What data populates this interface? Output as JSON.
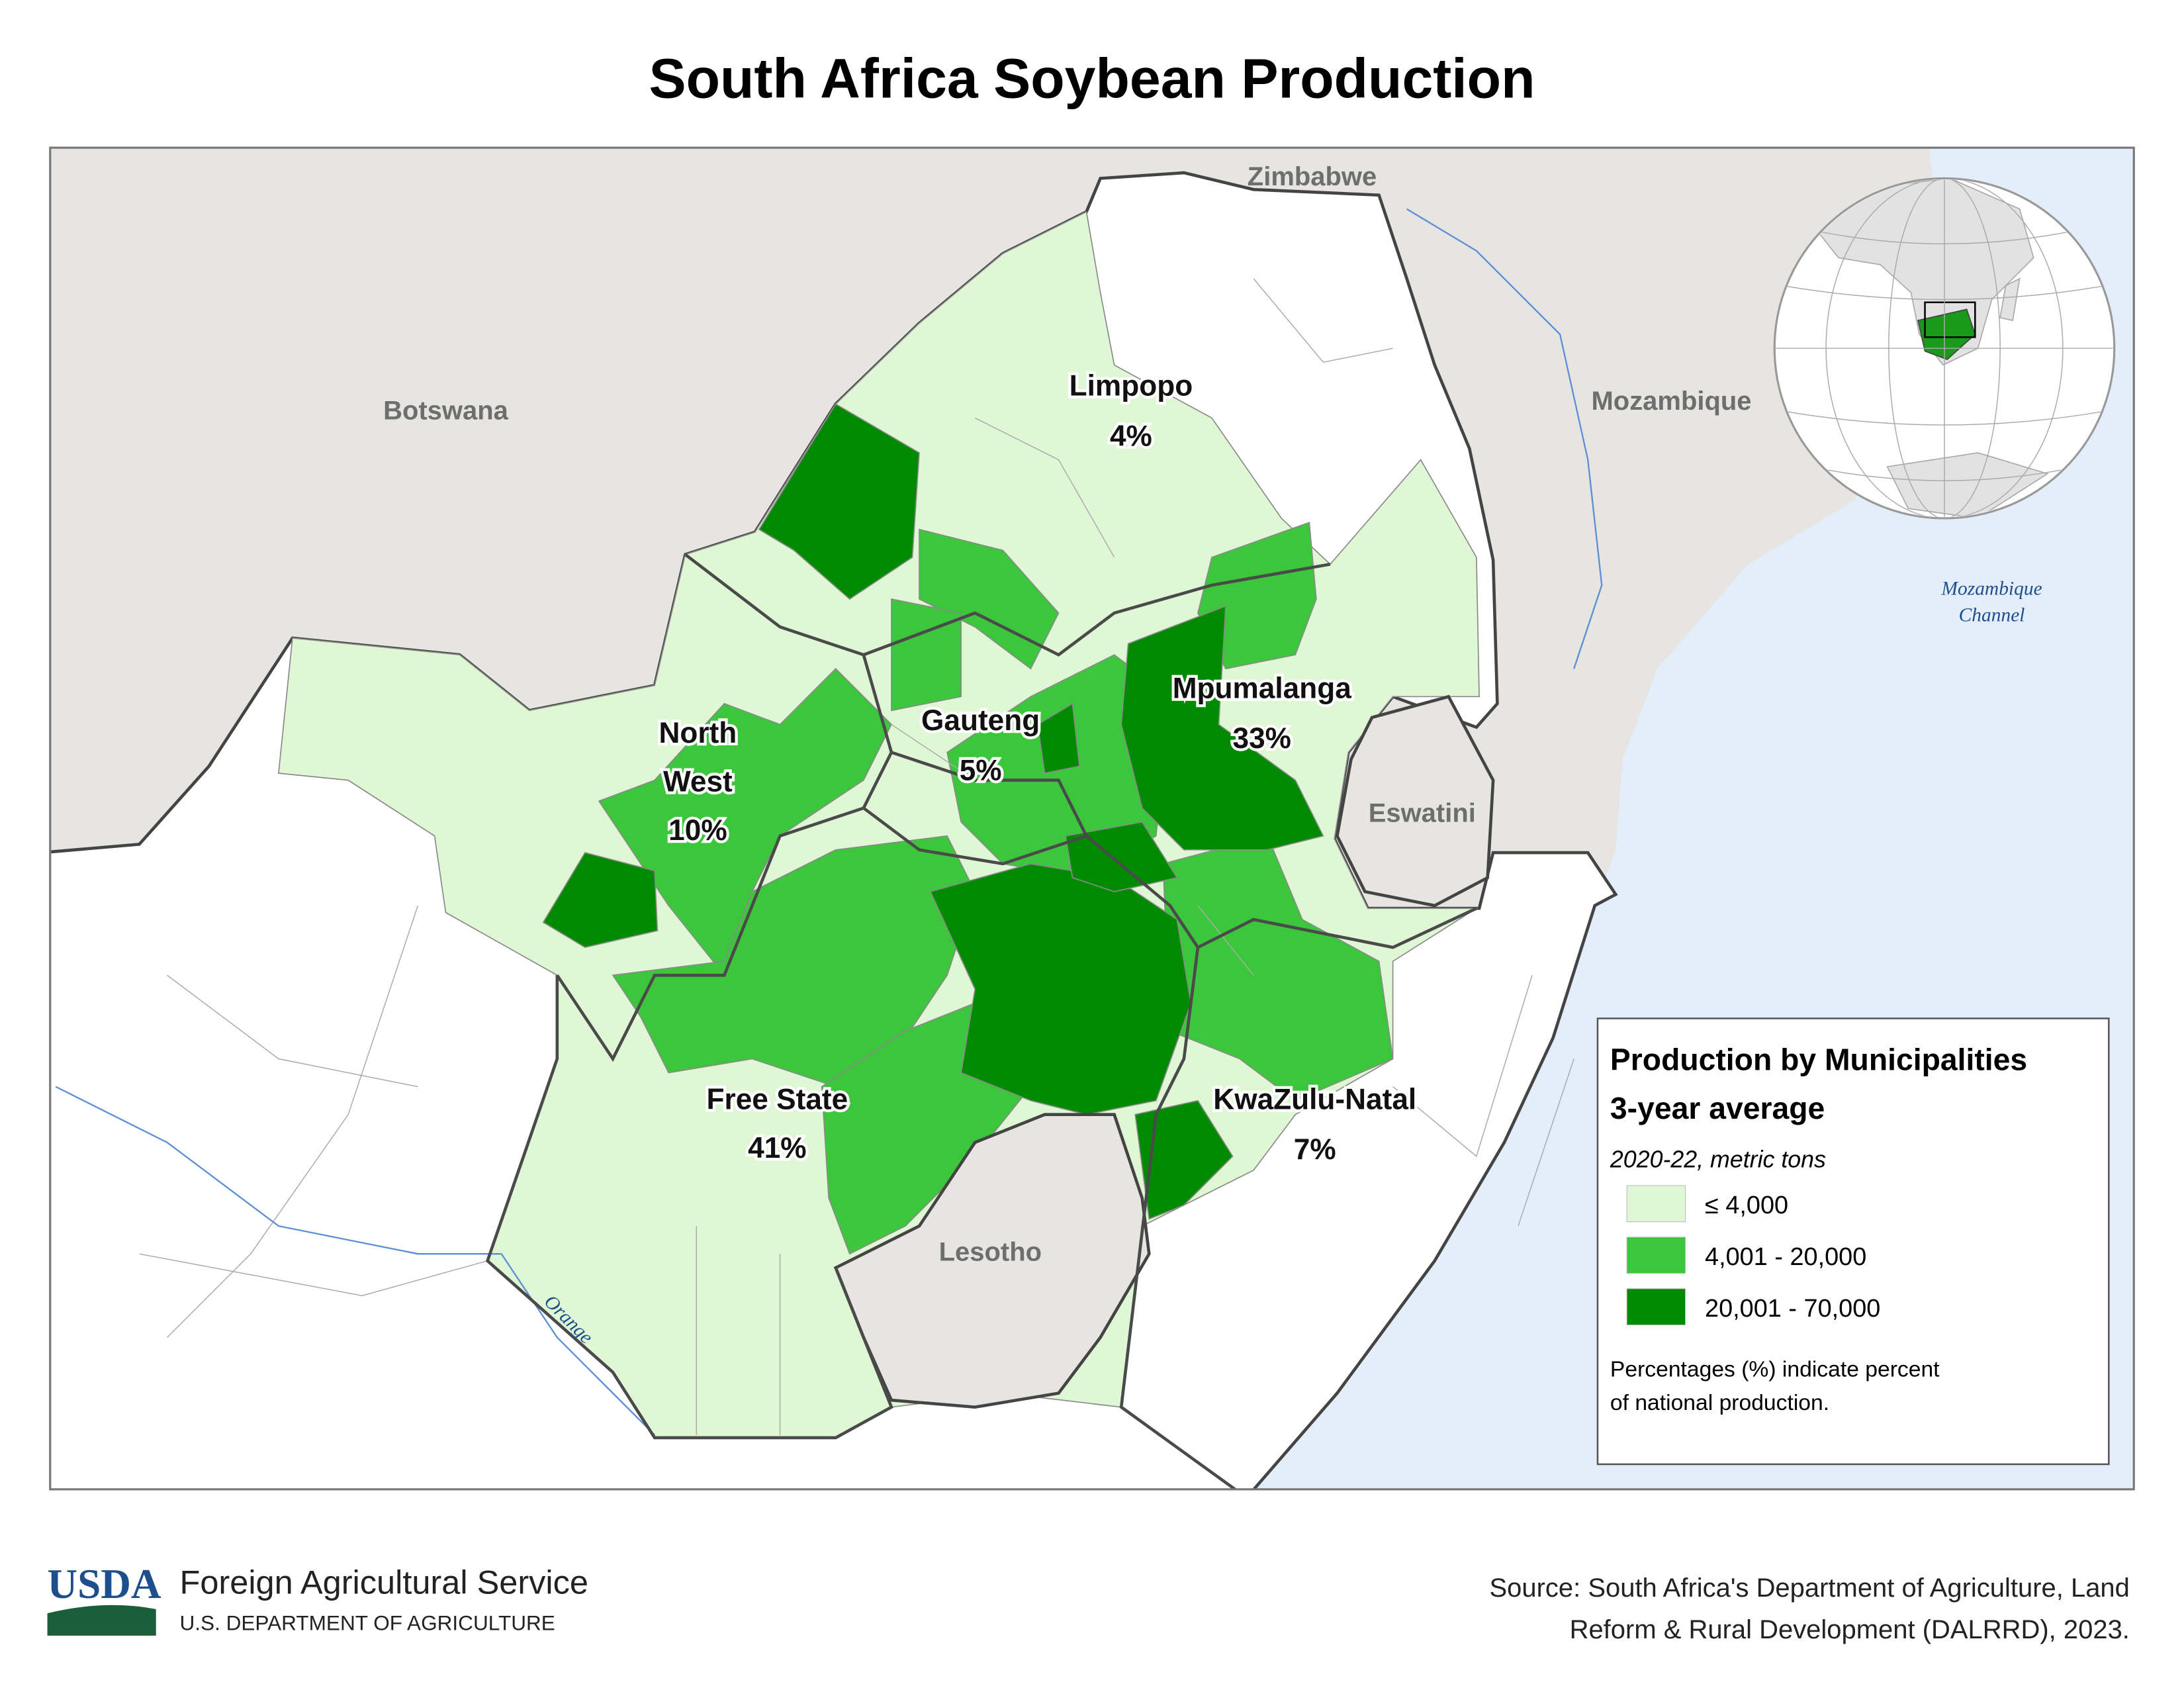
{
  "title": "South Africa Soybean Production",
  "neighbors": [
    "Zimbabwe",
    "Botswana",
    "Mozambique",
    "Eswatini",
    "Lesotho"
  ],
  "water_labels": {
    "channel": [
      "Mozambique",
      "Channel"
    ],
    "river": "Orange"
  },
  "provinces": [
    {
      "name_lines": [
        "Limpopo"
      ],
      "share": "4%"
    },
    {
      "name_lines": [
        "Mpumalanga"
      ],
      "share": "33%"
    },
    {
      "name_lines": [
        "North",
        "West"
      ],
      "share": "10%"
    },
    {
      "name_lines": [
        "Gauteng"
      ],
      "share": "5%"
    },
    {
      "name_lines": [
        "Free State"
      ],
      "share": "41%"
    },
    {
      "name_lines": [
        "KwaZulu-Natal"
      ],
      "share": "7%"
    }
  ],
  "legend": {
    "title": "Production by Municipalities",
    "subtitle": "3-year average",
    "period": "2020-22, metric tons",
    "classes": [
      {
        "label": "≤ 4,000",
        "color": "#dff7d5"
      },
      {
        "label": "4,001 - 20,000",
        "color": "#3cc63c"
      },
      {
        "label": "20,001 - 70,000",
        "color": "#008a00"
      }
    ],
    "note_lines": [
      "Percentages (%) indicate percent",
      "of national production."
    ]
  },
  "footer": {
    "logo": "USDA",
    "agency": "Foreign Agricultural Service",
    "department": "U.S. DEPARTMENT OF AGRICULTURE",
    "source_lines": [
      "Source: South Africa's Department of Agriculture, Land",
      "Reform & Rural Development (DALRRD), 2023."
    ]
  }
}
